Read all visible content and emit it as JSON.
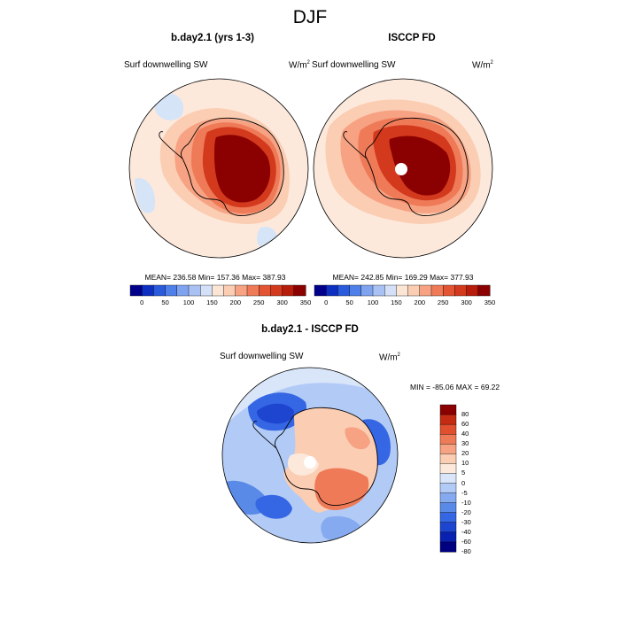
{
  "figure_title": "DJF",
  "panels": [
    {
      "title": "b.day2.1 (yrs 1-3)",
      "left_label": "Surf downwelling SW",
      "units": "W/m",
      "units_exp": "2",
      "stats": "MEAN= 236.58  Min= 157.36  Max= 387.93"
    },
    {
      "title": "ISCCP FD",
      "left_label": "Surf downwelling SW",
      "units": "W/m",
      "units_exp": "2",
      "stats": "MEAN= 242.85  Min= 169.29  Max= 377.93"
    },
    {
      "title": "b.day2.1 - ISCCP FD",
      "left_label": "Surf downwelling SW",
      "units": "W/m",
      "units_exp": "2",
      "stats": "MIN = -85.06 MAX =  69.22"
    }
  ],
  "chart_data": [
    {
      "type": "heatmap",
      "projection": "polar stereographic (South Pole)",
      "title": "b.day2.1 (yrs 1-3)",
      "variable": "Surf downwelling SW",
      "units": "W/m2",
      "mean": 236.58,
      "min": 157.36,
      "max": 387.93,
      "colorbar_levels": [
        0,
        50,
        100,
        150,
        200,
        250,
        300,
        350
      ],
      "colorbar_tick_labels": [
        "0",
        "50",
        "100",
        "150",
        "200",
        "250",
        "300",
        "350"
      ]
    },
    {
      "type": "heatmap",
      "projection": "polar stereographic (South Pole)",
      "title": "ISCCP FD",
      "variable": "Surf downwelling SW",
      "units": "W/m2",
      "mean": 242.85,
      "min": 169.29,
      "max": 377.93,
      "colorbar_levels": [
        0,
        50,
        100,
        150,
        200,
        250,
        300,
        350
      ],
      "colorbar_tick_labels": [
        "0",
        "50",
        "100",
        "150",
        "200",
        "250",
        "300",
        "350"
      ]
    },
    {
      "type": "heatmap",
      "projection": "polar stereographic (South Pole)",
      "title": "b.day2.1 - ISCCP FD",
      "variable": "Surf downwelling SW",
      "units": "W/m2",
      "min": -85.06,
      "max": 69.22,
      "colorbar_tick_labels": [
        "80",
        "60",
        "40",
        "30",
        "20",
        "10",
        "5",
        "0",
        "-5",
        "-10",
        "-20",
        "-30",
        "-40",
        "-60",
        "-80"
      ]
    }
  ],
  "colors": {
    "abs_scale": [
      "#00008b",
      "#0d2fc2",
      "#2a5bdc",
      "#4f7fe8",
      "#7fa3ef",
      "#a9c2f3",
      "#d3e0f8",
      "#fbe6d6",
      "#fbcdb3",
      "#f6a283",
      "#ef7a58",
      "#e35433",
      "#d33a1d",
      "#b81d0b",
      "#8b0000"
    ],
    "diff_scale": [
      "#000080",
      "#0a20b0",
      "#1e45d0",
      "#3566e4",
      "#5a8ae8",
      "#86aaf0",
      "#b2cbf6",
      "#d9e6fa",
      "#fde9dc",
      "#fbcdb3",
      "#f6a283",
      "#ef7a58",
      "#e0502f",
      "#c32b12",
      "#8b0000"
    ],
    "land_outline": "#000000"
  }
}
